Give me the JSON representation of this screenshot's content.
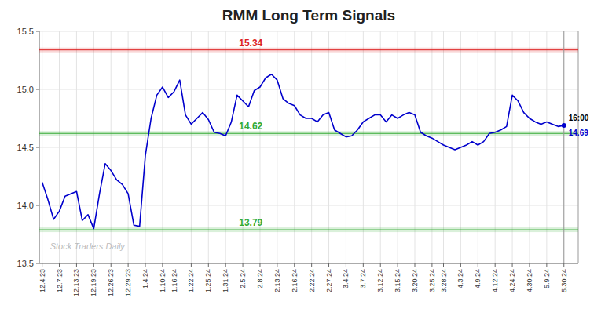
{
  "chart_data": {
    "type": "line",
    "title": "RMM Long Term Signals",
    "categories": [
      "12.4.23",
      null,
      null,
      "12.7.23",
      null,
      null,
      "12.13.23",
      null,
      null,
      "12.19.23",
      null,
      null,
      "12.26.23",
      null,
      null,
      "12.29.23",
      null,
      null,
      "1.4.24",
      null,
      null,
      "1.10.24",
      null,
      "1.16.24",
      null,
      null,
      "1.22.24",
      null,
      null,
      "1.25.24",
      null,
      null,
      "1.31.24",
      null,
      null,
      "2.5.24",
      null,
      null,
      "2.8.24",
      null,
      null,
      "2.13.24",
      null,
      null,
      "2.16.24",
      null,
      null,
      "2.22.24",
      null,
      null,
      "2.27.24",
      null,
      null,
      "3.4.24",
      null,
      null,
      "3.7.24",
      null,
      null,
      "3.12.24",
      null,
      null,
      "3.15.24",
      null,
      null,
      "3.20.24",
      null,
      null,
      "3.25.24",
      null,
      "3.28.24",
      null,
      null,
      "4.3.24",
      null,
      null,
      "4.9.24",
      null,
      null,
      "4.12.24",
      null,
      null,
      "4.24.24",
      null,
      null,
      "4.30.24",
      null,
      null,
      "5.9.24",
      null,
      null,
      "5.30.24"
    ],
    "values": [
      14.2,
      14.05,
      13.88,
      13.95,
      14.08,
      14.1,
      14.12,
      13.87,
      13.92,
      13.8,
      14.1,
      14.36,
      14.3,
      14.22,
      14.18,
      14.1,
      13.83,
      13.82,
      14.43,
      14.75,
      14.95,
      15.02,
      14.93,
      14.98,
      15.08,
      14.78,
      14.7,
      14.75,
      14.8,
      14.74,
      14.63,
      14.62,
      14.6,
      14.72,
      14.95,
      14.9,
      14.85,
      14.99,
      15.02,
      15.1,
      15.13,
      15.08,
      14.92,
      14.88,
      14.86,
      14.78,
      14.75,
      14.75,
      14.72,
      14.78,
      14.8,
      14.65,
      14.62,
      14.59,
      14.6,
      14.65,
      14.72,
      14.75,
      14.78,
      14.78,
      14.72,
      14.78,
      14.75,
      14.78,
      14.8,
      14.78,
      14.63,
      14.6,
      14.58,
      14.55,
      14.52,
      14.5,
      14.48,
      14.5,
      14.52,
      14.55,
      14.52,
      14.55,
      14.62,
      14.63,
      14.65,
      14.68,
      14.95,
      14.9,
      14.8,
      14.75,
      14.72,
      14.7,
      14.72,
      14.7,
      14.68,
      14.69
    ],
    "color": "#0000cc",
    "ylim": [
      13.5,
      15.5
    ],
    "yticks": [
      13.5,
      {
        "value": 14.0,
        "label": "14.0"
      },
      14.5,
      {
        "value": 15.0,
        "label": "15.0"
      },
      15.5
    ],
    "grid": true,
    "reference_lines": [
      {
        "value": 15.34,
        "label": "15.34",
        "color": "#dd2222"
      },
      {
        "value": 14.62,
        "label": "14.62",
        "color": "#33aa33"
      },
      {
        "value": 13.79,
        "label": "13.79",
        "color": "#33aa33"
      }
    ],
    "end_labels": {
      "time": "16:00",
      "price": "14.69"
    },
    "watermark": "Stock Traders Daily"
  }
}
